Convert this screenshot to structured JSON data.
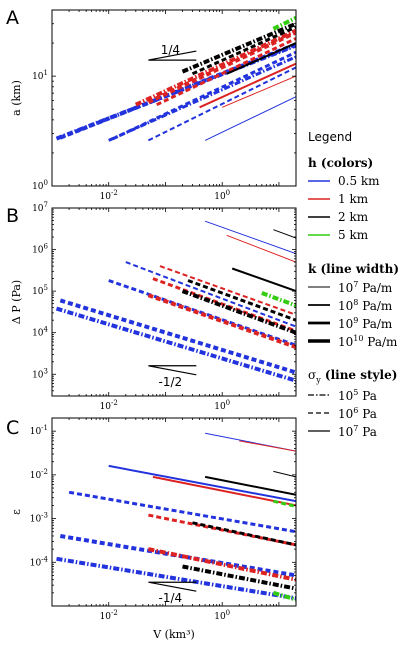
{
  "chart_data": [
    {
      "panel": "A",
      "type": "line",
      "xscale": "log",
      "yscale": "log",
      "xlim": [
        0.001,
        20
      ],
      "ylim": [
        1,
        40
      ],
      "xlabel": "",
      "ylabel": "a (km)",
      "xticks": [
        {
          "v": 0.01,
          "b": "10",
          "e": "-2"
        },
        {
          "v": 1,
          "b": "10",
          "e": "0"
        }
      ],
      "yticks": [
        {
          "v": 1,
          "b": "10",
          "e": "0"
        },
        {
          "v": 10,
          "b": "10",
          "e": "1"
        }
      ],
      "slope_label": "1/4",
      "slope_triangle": {
        "x": [
          0.05,
          0.35
        ],
        "y": [
          14,
          14
        ],
        "direction": "up"
      },
      "series": [
        {
          "h": "0.5 km",
          "k": "1e10",
          "sy": "1e5",
          "x": [
            0.0012,
            20
          ],
          "y": [
            2.7,
            19.0
          ]
        },
        {
          "h": "0.5 km",
          "k": "1e10",
          "sy": "1e6",
          "x": [
            0.0014,
            20
          ],
          "y": [
            2.75,
            19.5
          ]
        },
        {
          "h": "0.5 km",
          "k": "1e9",
          "sy": "1e5",
          "x": [
            0.01,
            20
          ],
          "y": [
            2.6,
            15.0
          ]
        },
        {
          "h": "0.5 km",
          "k": "1e9",
          "sy": "1e6",
          "x": [
            0.012,
            20
          ],
          "y": [
            2.7,
            16.5
          ]
        },
        {
          "h": "0.5 km",
          "k": "1e8",
          "sy": "1e6",
          "x": [
            0.05,
            20
          ],
          "y": [
            2.6,
            12.0
          ]
        },
        {
          "h": "0.5 km",
          "k": "1e7",
          "sy": "1e7",
          "x": [
            0.5,
            20
          ],
          "y": [
            2.6,
            6.5
          ]
        },
        {
          "h": "1 km",
          "k": "1e10",
          "sy": "1e5",
          "x": [
            0.03,
            20
          ],
          "y": [
            5.5,
            26
          ]
        },
        {
          "h": "1 km",
          "k": "1e10",
          "sy": "1e6",
          "x": [
            0.05,
            20
          ],
          "y": [
            5.8,
            25
          ]
        },
        {
          "h": "1 km",
          "k": "1e9",
          "sy": "1e6",
          "x": [
            0.07,
            20
          ],
          "y": [
            5.5,
            22
          ]
        },
        {
          "h": "1 km",
          "k": "1e8",
          "sy": "1e7",
          "x": [
            0.4,
            20
          ],
          "y": [
            5.2,
            13
          ]
        },
        {
          "h": "1 km",
          "k": "1e7",
          "sy": "1e7",
          "x": [
            1.0,
            20
          ],
          "y": [
            5.2,
            10
          ]
        },
        {
          "h": "2 km",
          "k": "1e10",
          "sy": "1e5",
          "x": [
            0.2,
            20
          ],
          "y": [
            11,
            30
          ]
        },
        {
          "h": "2 km",
          "k": "1e9",
          "sy": "1e6",
          "x": [
            0.3,
            20
          ],
          "y": [
            10.5,
            28
          ]
        },
        {
          "h": "2 km",
          "k": "1e8",
          "sy": "1e7",
          "x": [
            1.2,
            20
          ],
          "y": [
            10.5,
            20
          ]
        },
        {
          "h": "5 km",
          "k": "1e10",
          "sy": "1e5",
          "x": [
            8,
            20
          ],
          "y": [
            27,
            34
          ]
        }
      ]
    },
    {
      "panel": "B",
      "type": "line",
      "xscale": "log",
      "yscale": "log",
      "xlim": [
        0.001,
        20
      ],
      "ylim": [
        300,
        10000000
      ],
      "xlabel": "",
      "ylabel": "Δ P (Pa)",
      "xticks": [
        {
          "v": 0.01,
          "b": "10",
          "e": "-2"
        },
        {
          "v": 1,
          "b": "10",
          "e": "0"
        }
      ],
      "yticks": [
        {
          "v": 1000,
          "b": "10",
          "e": "3"
        },
        {
          "v": 10000,
          "b": "10",
          "e": "4"
        },
        {
          "v": 100000,
          "b": "10",
          "e": "5"
        },
        {
          "v": 1000000,
          "b": "10",
          "e": "6"
        },
        {
          "v": 10000000,
          "b": "10",
          "e": "7"
        }
      ],
      "slope_label": "-1/2",
      "slope_triangle": {
        "x": [
          0.05,
          0.35
        ],
        "y": [
          1600,
          1600
        ],
        "direction": "down"
      },
      "series": [
        {
          "h": "0.5 km",
          "k": "1e10",
          "sy": "1e5",
          "x": [
            0.0012,
            20
          ],
          "y": [
            38000,
            700
          ]
        },
        {
          "h": "0.5 km",
          "k": "1e10",
          "sy": "1e6",
          "x": [
            0.0014,
            20
          ],
          "y": [
            60000,
            1100
          ]
        },
        {
          "h": "0.5 km",
          "k": "1e9",
          "sy": "1e6",
          "x": [
            0.01,
            20
          ],
          "y": [
            180000,
            5000
          ]
        },
        {
          "h": "0.5 km",
          "k": "1e8",
          "sy": "1e6",
          "x": [
            0.02,
            20
          ],
          "y": [
            500000,
            14000
          ]
        },
        {
          "h": "0.5 km",
          "k": "1e7",
          "sy": "1e7",
          "x": [
            0.5,
            20
          ],
          "y": [
            4800000,
            800000
          ]
        },
        {
          "h": "1 km",
          "k": "1e10",
          "sy": "1e6",
          "x": [
            0.05,
            20
          ],
          "y": [
            80000,
            4500
          ]
        },
        {
          "h": "1 km",
          "k": "1e9",
          "sy": "1e6",
          "x": [
            0.06,
            20
          ],
          "y": [
            200000,
            11000
          ]
        },
        {
          "h": "1 km",
          "k": "1e8",
          "sy": "1e6",
          "x": [
            0.08,
            20
          ],
          "y": [
            400000,
            27000
          ]
        },
        {
          "h": "1 km",
          "k": "1e7",
          "sy": "1e7",
          "x": [
            1.2,
            20
          ],
          "y": [
            2200000,
            500000
          ]
        },
        {
          "h": "2 km",
          "k": "1e10",
          "sy": "1e5",
          "x": [
            0.2,
            20
          ],
          "y": [
            100000,
            10000
          ]
        },
        {
          "h": "2 km",
          "k": "1e9",
          "sy": "1e6",
          "x": [
            0.25,
            20
          ],
          "y": [
            180000,
            20000
          ]
        },
        {
          "h": "2 km",
          "k": "1e8",
          "sy": "1e7",
          "x": [
            1.5,
            20
          ],
          "y": [
            350000,
            100000
          ]
        },
        {
          "h": "2 km",
          "k": "1e7",
          "sy": "1e7",
          "x": [
            8,
            20
          ],
          "y": [
            3000000,
            1900000
          ]
        },
        {
          "h": "5 km",
          "k": "1e10",
          "sy": "1e5",
          "x": [
            5,
            20
          ],
          "y": [
            90000,
            45000
          ]
        }
      ]
    },
    {
      "panel": "C",
      "type": "line",
      "xscale": "log",
      "yscale": "log",
      "xlim": [
        0.001,
        20
      ],
      "ylim": [
        1e-05,
        0.2
      ],
      "xlabel": "V (km³)",
      "ylabel": "ε",
      "xticks": [
        {
          "v": 0.01,
          "b": "10",
          "e": "-2"
        },
        {
          "v": 1,
          "b": "10",
          "e": "0"
        }
      ],
      "yticks": [
        {
          "v": 0.0001,
          "b": "10",
          "e": "-4"
        },
        {
          "v": 0.001,
          "b": "10",
          "e": "-3"
        },
        {
          "v": 0.01,
          "b": "10",
          "e": "-2"
        },
        {
          "v": 0.1,
          "b": "10",
          "e": "-1"
        }
      ],
      "slope_label": "-1/4",
      "slope_triangle": {
        "x": [
          0.05,
          0.35
        ],
        "y": [
          3.5e-05,
          3.5e-05
        ],
        "direction": "down"
      },
      "series": [
        {
          "h": "0.5 km",
          "k": "1e10",
          "sy": "1e5",
          "x": [
            0.0012,
            20
          ],
          "y": [
            0.00012,
            1.5e-05
          ]
        },
        {
          "h": "0.5 km",
          "k": "1e10",
          "sy": "1e6",
          "x": [
            0.0014,
            20
          ],
          "y": [
            0.0004,
            5e-05
          ]
        },
        {
          "h": "0.5 km",
          "k": "1e9",
          "sy": "1e6",
          "x": [
            0.002,
            20
          ],
          "y": [
            0.004,
            0.0005
          ]
        },
        {
          "h": "0.5 km",
          "k": "1e8",
          "sy": "1e7",
          "x": [
            0.01,
            20
          ],
          "y": [
            0.016,
            0.0025
          ]
        },
        {
          "h": "0.5 km",
          "k": "1e7",
          "sy": "1e7",
          "x": [
            0.5,
            20
          ],
          "y": [
            0.09,
            0.035
          ]
        },
        {
          "h": "1 km",
          "k": "1e10",
          "sy": "1e5",
          "x": [
            0.05,
            20
          ],
          "y": [
            0.0002,
            4e-05
          ]
        },
        {
          "h": "1 km",
          "k": "1e9",
          "sy": "1e6",
          "x": [
            0.05,
            20
          ],
          "y": [
            0.0012,
            0.00025
          ]
        },
        {
          "h": "1 km",
          "k": "1e8",
          "sy": "1e7",
          "x": [
            0.06,
            20
          ],
          "y": [
            0.009,
            0.002
          ]
        },
        {
          "h": "1 km",
          "k": "1e7",
          "sy": "1e7",
          "x": [
            2,
            20
          ],
          "y": [
            0.06,
            0.035
          ]
        },
        {
          "h": "2 km",
          "k": "1e10",
          "sy": "1e5",
          "x": [
            0.2,
            20
          ],
          "y": [
            8e-05,
            2.5e-05
          ]
        },
        {
          "h": "2 km",
          "k": "1e9",
          "sy": "1e6",
          "x": [
            0.3,
            20
          ],
          "y": [
            0.0008,
            0.00025
          ]
        },
        {
          "h": "2 km",
          "k": "1e8",
          "sy": "1e7",
          "x": [
            0.5,
            20
          ],
          "y": [
            0.009,
            0.0035
          ]
        },
        {
          "h": "2 km",
          "k": "1e7",
          "sy": "1e7",
          "x": [
            8,
            20
          ],
          "y": [
            0.012,
            0.009
          ]
        },
        {
          "h": "5 km",
          "k": "1e10",
          "sy": "1e5",
          "x": [
            8,
            20
          ],
          "y": [
            2e-05,
            1.4e-05
          ]
        },
        {
          "h": "5 km",
          "k": "1e9",
          "sy": "1e6",
          "x": [
            8,
            20
          ],
          "y": [
            0.0025,
            0.0019
          ]
        }
      ]
    }
  ],
  "legend": {
    "title": "Legend",
    "h_title": "h (colors)",
    "h_items": [
      {
        "label": "0.5 km",
        "key": "0.5 km",
        "color": "#2233dd"
      },
      {
        "label": "1 km",
        "key": "1 km",
        "color": "#dd2222"
      },
      {
        "label": "2 km",
        "key": "2 km",
        "color": "#000000"
      },
      {
        "label": "5 km",
        "key": "5 km",
        "color": "#33cc11"
      }
    ],
    "k_title": "k (line width)",
    "k_items": [
      {
        "base": "10",
        "exp": "7",
        "unit": " Pa/m",
        "key": "1e7",
        "width": 1
      },
      {
        "base": "10",
        "exp": "8",
        "unit": "  Pa/m",
        "key": "1e8",
        "width": 2
      },
      {
        "base": "10",
        "exp": "9",
        "unit": "  Pa/m",
        "key": "1e9",
        "width": 3
      },
      {
        "base": "10",
        "exp": "10",
        "unit": " Pa/m",
        "key": "1e10",
        "width": 4
      }
    ],
    "s_title_sym": "σ",
    "s_title_sub": "y",
    "s_title_rest": " (line style)",
    "s_items": [
      {
        "base": "10",
        "exp": "5",
        "unit": " Pa",
        "key": "1e5",
        "style": "dashdot"
      },
      {
        "base": "10",
        "exp": "6",
        "unit": " Pa",
        "key": "1e6",
        "style": "dashed"
      },
      {
        "base": "10",
        "exp": "7",
        "unit": " Pa",
        "key": "1e7",
        "style": "solid"
      }
    ]
  }
}
